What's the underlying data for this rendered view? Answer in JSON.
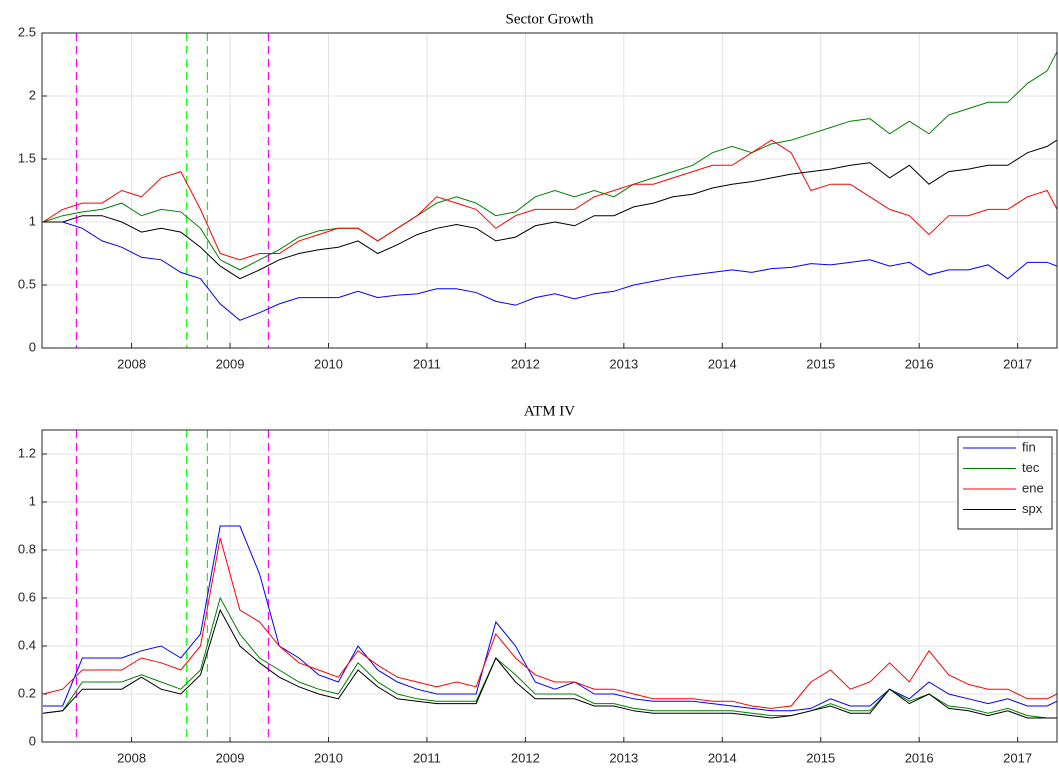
{
  "chart_data": [
    {
      "type": "line",
      "title": "Sector Growth",
      "x": [
        2007.1,
        2007.3,
        2007.5,
        2007.7,
        2007.9,
        2008.1,
        2008.3,
        2008.5,
        2008.7,
        2008.9,
        2009.1,
        2009.3,
        2009.5,
        2009.7,
        2009.9,
        2010.1,
        2010.3,
        2010.5,
        2010.7,
        2010.9,
        2011.1,
        2011.3,
        2011.5,
        2011.7,
        2011.9,
        2012.1,
        2012.3,
        2012.5,
        2012.7,
        2012.9,
        2013.1,
        2013.3,
        2013.5,
        2013.7,
        2013.9,
        2014.1,
        2014.3,
        2014.5,
        2014.7,
        2014.9,
        2015.1,
        2015.3,
        2015.5,
        2015.7,
        2015.9,
        2016.1,
        2016.3,
        2016.5,
        2016.7,
        2016.9,
        2017.1,
        2017.3,
        2017.4
      ],
      "series": [
        {
          "color": "#0000ff",
          "values": [
            1.0,
            1.0,
            0.95,
            0.85,
            0.8,
            0.72,
            0.7,
            0.6,
            0.55,
            0.35,
            0.22,
            0.28,
            0.35,
            0.4,
            0.4,
            0.4,
            0.45,
            0.4,
            0.42,
            0.43,
            0.47,
            0.47,
            0.44,
            0.37,
            0.34,
            0.4,
            0.43,
            0.39,
            0.43,
            0.45,
            0.5,
            0.53,
            0.56,
            0.58,
            0.6,
            0.62,
            0.6,
            0.63,
            0.64,
            0.67,
            0.66,
            0.68,
            0.7,
            0.65,
            0.68,
            0.58,
            0.62,
            0.62,
            0.66,
            0.55,
            0.68,
            0.68,
            0.65
          ]
        },
        {
          "color": "#008000",
          "values": [
            1.0,
            1.05,
            1.08,
            1.1,
            1.15,
            1.05,
            1.1,
            1.08,
            0.95,
            0.7,
            0.62,
            0.7,
            0.78,
            0.88,
            0.93,
            0.95,
            0.95,
            0.85,
            0.95,
            1.05,
            1.15,
            1.2,
            1.15,
            1.05,
            1.08,
            1.2,
            1.25,
            1.2,
            1.25,
            1.2,
            1.3,
            1.35,
            1.4,
            1.45,
            1.55,
            1.6,
            1.55,
            1.62,
            1.65,
            1.7,
            1.75,
            1.8,
            1.82,
            1.7,
            1.8,
            1.7,
            1.85,
            1.9,
            1.95,
            1.95,
            2.1,
            2.2,
            2.35
          ]
        },
        {
          "color": "#ff0000",
          "values": [
            1.0,
            1.1,
            1.15,
            1.15,
            1.25,
            1.2,
            1.35,
            1.4,
            1.1,
            0.75,
            0.7,
            0.75,
            0.75,
            0.85,
            0.9,
            0.95,
            0.95,
            0.85,
            0.95,
            1.05,
            1.2,
            1.15,
            1.1,
            0.95,
            1.05,
            1.1,
            1.1,
            1.1,
            1.2,
            1.25,
            1.3,
            1.3,
            1.35,
            1.4,
            1.45,
            1.45,
            1.55,
            1.65,
            1.55,
            1.25,
            1.3,
            1.3,
            1.2,
            1.1,
            1.05,
            0.9,
            1.05,
            1.05,
            1.1,
            1.1,
            1.2,
            1.25,
            1.1
          ]
        },
        {
          "color": "#000000",
          "values": [
            1.0,
            1.0,
            1.05,
            1.05,
            1.0,
            0.92,
            0.95,
            0.92,
            0.8,
            0.65,
            0.55,
            0.62,
            0.7,
            0.75,
            0.78,
            0.8,
            0.85,
            0.75,
            0.82,
            0.9,
            0.95,
            0.98,
            0.95,
            0.85,
            0.88,
            0.97,
            1.0,
            0.97,
            1.05,
            1.05,
            1.12,
            1.15,
            1.2,
            1.22,
            1.27,
            1.3,
            1.32,
            1.35,
            1.38,
            1.4,
            1.42,
            1.45,
            1.47,
            1.35,
            1.45,
            1.3,
            1.4,
            1.42,
            1.45,
            1.45,
            1.55,
            1.6,
            1.65
          ]
        }
      ],
      "vlines": [
        {
          "x": 2007.44,
          "color": "#ff00ff"
        },
        {
          "x": 2008.56,
          "color": "#00ff00"
        },
        {
          "x": 2008.77,
          "color": "#00ff00"
        },
        {
          "x": 2009.39,
          "color": "#ff00ff"
        }
      ],
      "xlim": [
        2007.09,
        2017.4
      ],
      "xticks": [
        2008,
        2009,
        2010,
        2011,
        2012,
        2013,
        2014,
        2015,
        2016,
        2017
      ],
      "ylim": [
        0,
        2.5
      ],
      "yticks": [
        0,
        0.5,
        1,
        1.5,
        2,
        2.5
      ],
      "grid": true
    },
    {
      "type": "line",
      "title": "ATM IV",
      "x": [
        2007.1,
        2007.3,
        2007.5,
        2007.7,
        2007.9,
        2008.1,
        2008.3,
        2008.5,
        2008.7,
        2008.9,
        2009.1,
        2009.3,
        2009.5,
        2009.7,
        2009.9,
        2010.1,
        2010.3,
        2010.5,
        2010.7,
        2010.9,
        2011.1,
        2011.3,
        2011.5,
        2011.7,
        2011.9,
        2012.1,
        2012.3,
        2012.5,
        2012.7,
        2012.9,
        2013.1,
        2013.3,
        2013.5,
        2013.7,
        2013.9,
        2014.1,
        2014.3,
        2014.5,
        2014.7,
        2014.9,
        2015.1,
        2015.3,
        2015.5,
        2015.7,
        2015.9,
        2016.1,
        2016.3,
        2016.5,
        2016.7,
        2016.9,
        2017.1,
        2017.3,
        2017.4
      ],
      "series": [
        {
          "name": "fin",
          "color": "#0000ff",
          "values": [
            0.15,
            0.15,
            0.35,
            0.35,
            0.35,
            0.38,
            0.4,
            0.35,
            0.45,
            0.9,
            0.9,
            0.7,
            0.4,
            0.35,
            0.28,
            0.25,
            0.4,
            0.3,
            0.25,
            0.22,
            0.2,
            0.2,
            0.2,
            0.5,
            0.4,
            0.25,
            0.22,
            0.25,
            0.2,
            0.2,
            0.18,
            0.17,
            0.17,
            0.17,
            0.16,
            0.15,
            0.14,
            0.13,
            0.13,
            0.14,
            0.18,
            0.15,
            0.15,
            0.22,
            0.18,
            0.25,
            0.2,
            0.18,
            0.16,
            0.18,
            0.15,
            0.15,
            0.17
          ]
        },
        {
          "name": "tec",
          "color": "#008000",
          "values": [
            0.12,
            0.13,
            0.25,
            0.25,
            0.25,
            0.28,
            0.25,
            0.22,
            0.3,
            0.6,
            0.45,
            0.35,
            0.3,
            0.25,
            0.22,
            0.2,
            0.33,
            0.25,
            0.2,
            0.18,
            0.17,
            0.17,
            0.17,
            0.35,
            0.28,
            0.2,
            0.2,
            0.2,
            0.16,
            0.16,
            0.14,
            0.13,
            0.13,
            0.13,
            0.13,
            0.13,
            0.12,
            0.11,
            0.11,
            0.13,
            0.16,
            0.13,
            0.13,
            0.22,
            0.17,
            0.2,
            0.15,
            0.14,
            0.12,
            0.14,
            0.11,
            0.1,
            0.1
          ]
        },
        {
          "name": "ene",
          "color": "#ff0000",
          "values": [
            0.2,
            0.22,
            0.3,
            0.3,
            0.3,
            0.35,
            0.33,
            0.3,
            0.4,
            0.85,
            0.55,
            0.5,
            0.4,
            0.33,
            0.3,
            0.27,
            0.38,
            0.32,
            0.27,
            0.25,
            0.23,
            0.25,
            0.23,
            0.45,
            0.35,
            0.28,
            0.25,
            0.25,
            0.22,
            0.22,
            0.2,
            0.18,
            0.18,
            0.18,
            0.17,
            0.17,
            0.15,
            0.14,
            0.15,
            0.25,
            0.3,
            0.22,
            0.25,
            0.33,
            0.25,
            0.38,
            0.28,
            0.24,
            0.22,
            0.22,
            0.18,
            0.18,
            0.2
          ]
        },
        {
          "name": "spx",
          "color": "#000000",
          "values": [
            0.12,
            0.13,
            0.22,
            0.22,
            0.22,
            0.27,
            0.22,
            0.2,
            0.28,
            0.55,
            0.4,
            0.33,
            0.27,
            0.23,
            0.2,
            0.18,
            0.3,
            0.23,
            0.18,
            0.17,
            0.16,
            0.16,
            0.16,
            0.35,
            0.25,
            0.18,
            0.18,
            0.18,
            0.15,
            0.15,
            0.13,
            0.12,
            0.12,
            0.12,
            0.12,
            0.12,
            0.11,
            0.1,
            0.11,
            0.13,
            0.15,
            0.12,
            0.12,
            0.22,
            0.16,
            0.2,
            0.14,
            0.13,
            0.11,
            0.13,
            0.1,
            0.1,
            0.1
          ]
        }
      ],
      "vlines": [
        {
          "x": 2007.44,
          "color": "#ff00ff"
        },
        {
          "x": 2008.56,
          "color": "#00ff00"
        },
        {
          "x": 2008.77,
          "color": "#00ff00"
        },
        {
          "x": 2009.39,
          "color": "#ff00ff"
        }
      ],
      "xlim": [
        2007.09,
        2017.4
      ],
      "xticks": [
        2008,
        2009,
        2010,
        2011,
        2012,
        2013,
        2014,
        2015,
        2016,
        2017
      ],
      "ylim": [
        0,
        1.3
      ],
      "yticks": [
        0,
        0.2,
        0.4,
        0.6,
        0.8,
        1,
        1.2
      ],
      "grid": true,
      "legend": "northeast"
    }
  ]
}
